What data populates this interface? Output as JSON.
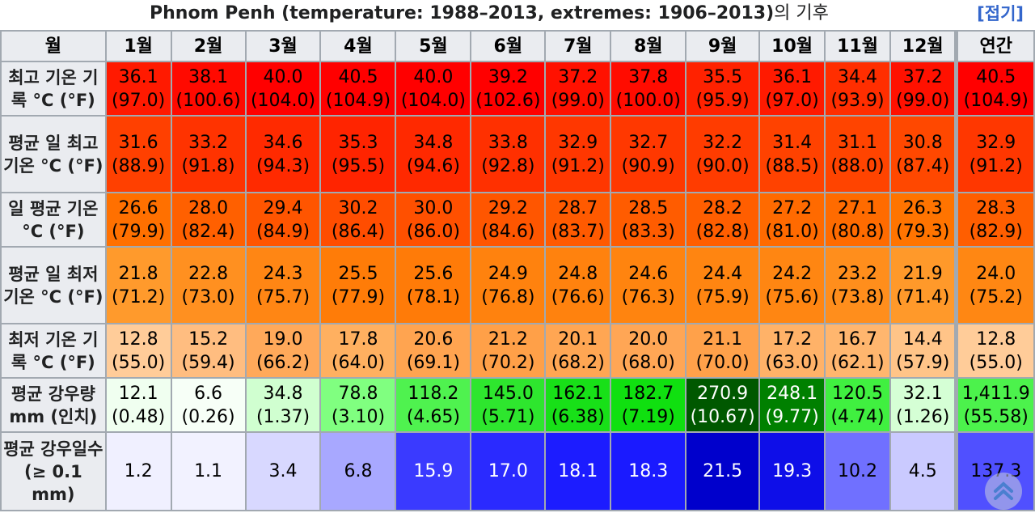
{
  "caption": {
    "title": "Phnom Penh (temperature: 1988–2013, extremes: 1906–2013)",
    "suffix": "의 기후",
    "toggle": "[접기]"
  },
  "table": {
    "month_header": "월",
    "months": [
      "1월",
      "2월",
      "3월",
      "4월",
      "5월",
      "6월",
      "7월",
      "8월",
      "9월",
      "10월",
      "11월",
      "12월"
    ],
    "annual_header": "연간",
    "rows": [
      {
        "label": "최고 기온 기록 °C (°F)",
        "values": [
          "36.1\n(97.0)",
          "38.1\n(100.6)",
          "40.0\n(104.0)",
          "40.5\n(104.9)",
          "40.0\n(104.0)",
          "39.2\n(102.6)",
          "37.2\n(99.0)",
          "37.8\n(100.0)",
          "35.5\n(95.9)",
          "36.1\n(97.0)",
          "34.4\n(93.9)",
          "37.2\n(99.0)"
        ],
        "annual": "40.5\n(104.9)",
        "colors": [
          "#ff1a00",
          "#ff0a00",
          "#ff0000",
          "#ff0000",
          "#ff0000",
          "#ff0000",
          "#ff1100",
          "#ff0c00",
          "#ff2200",
          "#ff1a00",
          "#ff2e00",
          "#ff1100"
        ],
        "annual_color": "#ff0000"
      },
      {
        "label": "평균 일 최고 기온 °C (°F)",
        "values": [
          "31.6\n(88.9)",
          "33.2\n(91.8)",
          "34.6\n(94.3)",
          "35.3\n(95.5)",
          "34.8\n(94.6)",
          "33.8\n(92.8)",
          "32.9\n(91.2)",
          "32.7\n(90.9)",
          "32.2\n(90.0)",
          "31.4\n(88.5)",
          "31.1\n(88.0)",
          "30.8\n(87.4)"
        ],
        "annual": "32.9\n(91.2)",
        "colors": [
          "#ff4000",
          "#ff3300",
          "#ff2a00",
          "#ff2400",
          "#ff2900",
          "#ff3000",
          "#ff3700",
          "#ff3800",
          "#ff3c00",
          "#ff4200",
          "#ff4400",
          "#ff4800"
        ],
        "annual_color": "#ff3700"
      },
      {
        "label": "일 평균 기온 °C (°F)",
        "values": [
          "26.6\n(79.9)",
          "28.0\n(82.4)",
          "29.4\n(84.9)",
          "30.2\n(86.4)",
          "30.0\n(86.0)",
          "29.2\n(84.6)",
          "28.7\n(83.7)",
          "28.5\n(83.3)",
          "28.2\n(82.8)",
          "27.2\n(81.0)",
          "27.1\n(80.8)",
          "26.3\n(79.3)"
        ],
        "annual": "28.3\n(82.9)",
        "colors": [
          "#ff7000",
          "#ff6000",
          "#ff5500",
          "#ff4d00",
          "#ff5000",
          "#ff5600",
          "#ff5a00",
          "#ff5c00",
          "#ff5e00",
          "#ff6a00",
          "#ff6b00",
          "#ff7400"
        ],
        "annual_color": "#ff5e00"
      },
      {
        "label": "평균 일 최저 기온 °C (°F)",
        "values": [
          "21.8\n(71.2)",
          "22.8\n(73.0)",
          "24.3\n(75.7)",
          "25.5\n(77.9)",
          "25.6\n(78.1)",
          "24.9\n(76.8)",
          "24.8\n(76.6)",
          "24.6\n(76.3)",
          "24.4\n(75.9)",
          "24.2\n(75.6)",
          "23.2\n(73.8)",
          "21.9\n(71.4)"
        ],
        "annual": "24.0\n(75.2)",
        "colors": [
          "#ff9a2c",
          "#ff9020",
          "#ff8614",
          "#ff7c08",
          "#ff7b08",
          "#ff820e",
          "#ff820e",
          "#ff840f",
          "#ff8511",
          "#ff8612",
          "#ff8e1c",
          "#ff992a"
        ],
        "annual_color": "#ff8713"
      },
      {
        "label": "최저 기온 기록 °C (°F)",
        "values": [
          "12.8\n(55.0)",
          "15.2\n(59.4)",
          "19.0\n(66.2)",
          "17.8\n(64.0)",
          "20.6\n(69.1)",
          "21.2\n(70.2)",
          "20.1\n(68.2)",
          "20.0\n(68.0)",
          "21.1\n(70.0)",
          "17.2\n(63.0)",
          "16.7\n(62.1)",
          "14.4\n(57.9)"
        ],
        "annual": "12.8\n(55.0)",
        "colors": [
          "#ffcc99",
          "#ffbd80",
          "#ffa95a",
          "#ffb060",
          "#ffa450",
          "#ffa048",
          "#ffa653",
          "#ffa655",
          "#ffa14a",
          "#ffb268",
          "#ffb66e",
          "#ffc488"
        ],
        "annual_color": "#ffcc99"
      },
      {
        "label": "평균 강우량 mm (인치)",
        "values": [
          "12.1\n(0.48)",
          "6.6\n(0.26)",
          "34.8\n(1.37)",
          "78.8\n(3.10)",
          "118.2\n(4.65)",
          "145.0\n(5.71)",
          "162.1\n(6.38)",
          "182.7\n(7.19)",
          "270.9\n(10.67)",
          "248.1\n(9.77)",
          "120.5\n(4.74)",
          "32.1\n(1.26)"
        ],
        "annual": "1,411.9\n(55.58)",
        "colors": [
          "#f0fff0",
          "#f7fff7",
          "#d0ffd0",
          "#80ff80",
          "#4ff24f",
          "#2ee62e",
          "#18e018",
          "#10e010",
          "#005800",
          "#008000",
          "#40f040",
          "#d5ffd5"
        ],
        "annual_color": "#4cf24c",
        "text_colors": [
          "#000",
          "#000",
          "#000",
          "#000",
          "#000",
          "#000",
          "#000",
          "#000",
          "#fff",
          "#fff",
          "#000",
          "#000"
        ]
      },
      {
        "label": "평균 강우일수 (≥ 0.1 mm)",
        "values": [
          "1.2",
          "1.1",
          "3.4",
          "6.8",
          "15.9",
          "17.0",
          "18.1",
          "18.3",
          "21.5",
          "19.3",
          "10.2",
          "4.5"
        ],
        "annual": "137.3",
        "colors": [
          "#f0f0ff",
          "#f2f2ff",
          "#d8d8ff",
          "#a8a8ff",
          "#3a3aff",
          "#2a2aff",
          "#1c1cff",
          "#1a1aff",
          "#0000cc",
          "#0e0ee8",
          "#7070ff",
          "#cacaff"
        ],
        "annual_color": "#5050ff",
        "text_colors": [
          "#000",
          "#000",
          "#000",
          "#000",
          "#fff",
          "#fff",
          "#fff",
          "#fff",
          "#fff",
          "#fff",
          "#000",
          "#000"
        ]
      }
    ]
  },
  "scroll_top_button": "chevron-up-icon"
}
